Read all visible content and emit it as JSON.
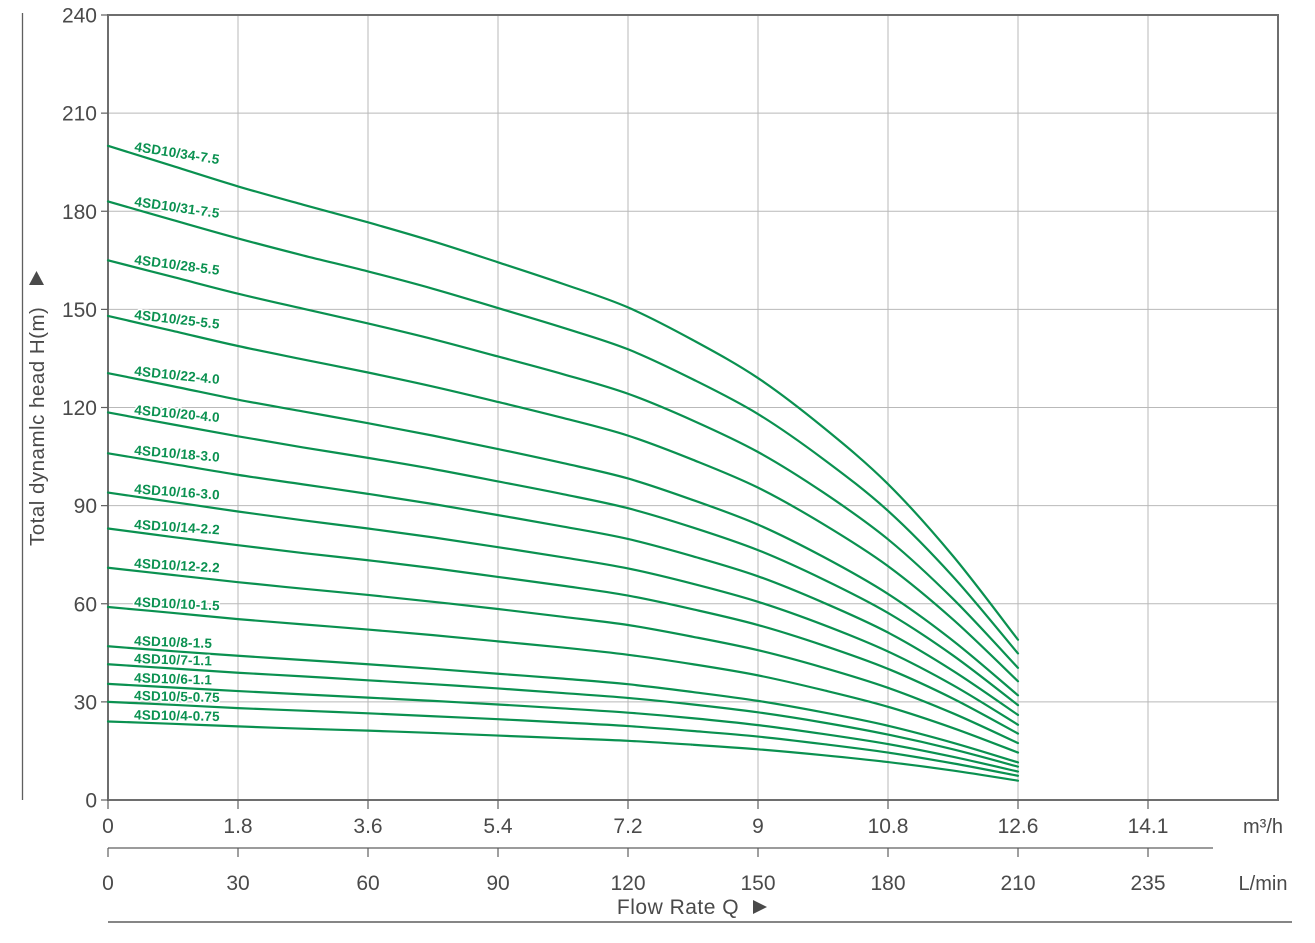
{
  "figure": {
    "background": "#ffffff"
  },
  "chart_data": {
    "type": "line",
    "title": "",
    "xlabel": "Flow Rate Q",
    "ylabel": "Total dynamlc head H(m)",
    "grid": true,
    "legend_position": "labels-on-curves",
    "colors": {
      "curve": "#0a9150",
      "curve_label": "#0a9150",
      "grid": "#b9b9b9",
      "plot_border": "#6e6e6e",
      "axis_line": "#5f5f5f",
      "axis_text": "#4a4a4a"
    },
    "y_axis": {
      "label": "Total dynamlc head H(m)",
      "min": 0,
      "max": 240,
      "tick_labels": [
        "0",
        "30",
        "60",
        "90",
        "120",
        "150",
        "180",
        "210",
        "240"
      ]
    },
    "x_axis_m3h": {
      "tick_labels": [
        "0",
        "1.8",
        "3.6",
        "5.4",
        "7.2",
        "9",
        "10.8",
        "12.6",
        "14.1"
      ],
      "unit": "m³/h"
    },
    "x_axis_lmin": {
      "tick_labels": [
        "0",
        "30",
        "60",
        "90",
        "120",
        "150",
        "180",
        "210",
        "235"
      ],
      "unit": "L/min"
    },
    "flow_rate_label": "Flow Rate Q",
    "q_m3h": [
      0,
      0.9,
      1.8,
      2.7,
      3.6,
      4.5,
      5.4,
      6.3,
      7.2,
      8.1,
      9.0,
      9.9,
      10.8,
      11.7,
      12.6
    ],
    "series": [
      {
        "name": "4SD10/34-7.5",
        "shutoff_head_m": 200,
        "H_m": [
          200.0,
          193.8,
          187.6,
          182.0,
          176.6,
          170.8,
          164.4,
          157.8,
          150.6,
          140.6,
          129.0,
          114.0,
          96.6,
          74.6,
          49.0
        ]
      },
      {
        "name": "4SD10/31-7.5",
        "shutoff_head_m": 183,
        "H_m": [
          183.0,
          177.3,
          171.7,
          166.5,
          161.6,
          156.3,
          150.4,
          144.4,
          137.8,
          128.6,
          118.0,
          104.3,
          88.4,
          68.3,
          44.8
        ]
      },
      {
        "name": "4SD10/28-5.5",
        "shutoff_head_m": 165,
        "H_m": [
          165.0,
          159.9,
          154.8,
          150.2,
          145.7,
          140.9,
          135.6,
          130.2,
          124.2,
          116.0,
          106.4,
          94.1,
          79.7,
          61.5,
          40.4
        ]
      },
      {
        "name": "4SD10/25-5.5",
        "shutoff_head_m": 148,
        "H_m": [
          148.0,
          143.4,
          138.8,
          134.7,
          130.7,
          126.4,
          121.7,
          116.8,
          111.4,
          104.0,
          95.5,
          84.4,
          71.5,
          55.2,
          36.3
        ]
      },
      {
        "name": "4SD10/22-4.0",
        "shutoff_head_m": 130.5,
        "H_m": [
          130.5,
          126.5,
          122.4,
          118.8,
          115.2,
          111.4,
          107.3,
          103.0,
          98.3,
          91.7,
          84.2,
          74.4,
          63.0,
          48.7,
          32.0
        ]
      },
      {
        "name": "4SD10/20-4.0",
        "shutoff_head_m": 118.5,
        "H_m": [
          118.5,
          114.8,
          111.2,
          107.8,
          104.6,
          101.2,
          97.4,
          93.5,
          89.2,
          83.3,
          76.4,
          67.5,
          57.2,
          44.2,
          29.0
        ]
      },
      {
        "name": "4SD10/18-3.0",
        "shutoff_head_m": 106,
        "H_m": [
          106.0,
          102.7,
          99.4,
          96.5,
          93.6,
          90.5,
          87.1,
          83.6,
          79.8,
          74.5,
          68.4,
          60.4,
          51.2,
          39.5,
          26.0
        ]
      },
      {
        "name": "4SD10/16-3.0",
        "shutoff_head_m": 94,
        "H_m": [
          94.0,
          91.1,
          88.2,
          85.5,
          83.0,
          80.3,
          77.3,
          74.2,
          70.8,
          66.1,
          60.6,
          53.6,
          45.4,
          35.1,
          23.0
        ]
      },
      {
        "name": "4SD10/14-2.2",
        "shutoff_head_m": 83,
        "H_m": [
          83.0,
          80.4,
          77.9,
          75.5,
          73.3,
          70.9,
          68.2,
          65.5,
          62.5,
          58.3,
          53.5,
          47.3,
          40.1,
          31.0,
          20.3
        ]
      },
      {
        "name": "4SD10/12-2.2",
        "shutoff_head_m": 71,
        "H_m": [
          71.0,
          68.8,
          66.6,
          64.6,
          62.7,
          60.6,
          58.4,
          56.0,
          53.5,
          49.9,
          45.8,
          40.5,
          34.3,
          26.5,
          17.4
        ]
      },
      {
        "name": "4SD10/10-1.5",
        "shutoff_head_m": 59,
        "H_m": [
          59.0,
          57.2,
          55.3,
          53.7,
          52.1,
          50.4,
          48.5,
          46.6,
          44.4,
          41.5,
          38.1,
          33.6,
          28.5,
          22.0,
          14.5
        ]
      },
      {
        "name": "4SD10/8-1.5",
        "shutoff_head_m": 47,
        "H_m": [
          47.0,
          45.5,
          44.1,
          42.8,
          41.5,
          40.1,
          38.6,
          37.1,
          35.4,
          33.0,
          30.3,
          26.8,
          22.7,
          17.5,
          11.5
        ]
      },
      {
        "name": "4SD10/7-1.1",
        "shutoff_head_m": 41.5,
        "H_m": [
          41.5,
          40.2,
          38.9,
          37.8,
          36.6,
          35.4,
          34.1,
          32.7,
          31.2,
          29.2,
          26.8,
          23.7,
          20.0,
          15.5,
          10.2
        ]
      },
      {
        "name": "4SD10/6-1.1",
        "shutoff_head_m": 35.5,
        "H_m": [
          35.5,
          34.4,
          33.3,
          32.3,
          31.3,
          30.3,
          29.2,
          28.0,
          26.7,
          25.0,
          22.9,
          20.2,
          17.1,
          13.2,
          8.7
        ]
      },
      {
        "name": "4SD10/5-0.75",
        "shutoff_head_m": 30,
        "H_m": [
          30.0,
          29.1,
          28.1,
          27.3,
          26.5,
          25.6,
          24.7,
          23.7,
          22.6,
          21.1,
          19.4,
          17.1,
          14.5,
          11.2,
          7.4
        ]
      },
      {
        "name": "4SD10/4-0.75",
        "shutoff_head_m": 24,
        "H_m": [
          24.0,
          23.3,
          22.5,
          21.8,
          21.2,
          20.5,
          19.7,
          18.9,
          18.1,
          16.9,
          15.5,
          13.7,
          11.6,
          9.0,
          5.9
        ]
      }
    ]
  }
}
